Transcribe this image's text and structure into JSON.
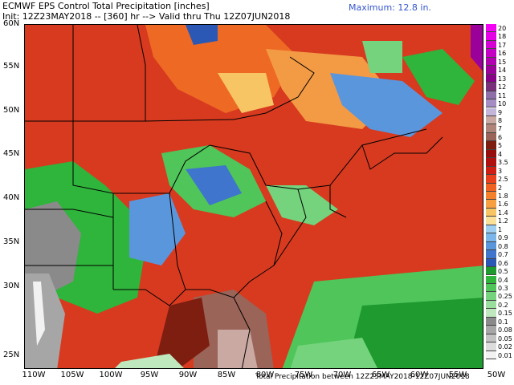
{
  "header": {
    "title": "ECMWF EPS Control Total Precipitation [inches]",
    "init_line": "Init: 12Z23MAY2018 -- [360] hr --> Valid thru Thu 12Z07JUN2018",
    "maximum": "Maximum: 12.8 in."
  },
  "footer": "Total Precipitation between 12Z23MAY2018-12Z07JUN2018",
  "lat_labels": [
    "60N",
    "55N",
    "50N",
    "45N",
    "40N",
    "35N",
    "30N",
    "25N"
  ],
  "lon_labels": [
    "110W",
    "105W",
    "100W",
    "95W",
    "90W",
    "85W",
    "80W",
    "75W",
    "70W",
    "65W",
    "60W",
    "55W",
    "50W"
  ],
  "legend": {
    "labels": [
      "20",
      "18",
      "17",
      "16",
      "15",
      "14",
      "13",
      "12",
      "11",
      "10",
      "9",
      "8",
      "7",
      "6",
      "5",
      "4",
      "3.5",
      "3",
      "2.5",
      "2",
      "1.8",
      "1.6",
      "1.4",
      "1.2",
      "1",
      "0.9",
      "0.8",
      "0.7",
      "0.6",
      "0.5",
      "0.4",
      "0.3",
      "0.25",
      "0.2",
      "0.15",
      "0.1",
      "0.08",
      "0.05",
      "0.02",
      "0.01"
    ],
    "colors": [
      "#f400f4",
      "#e600e6",
      "#d400d4",
      "#c400c4",
      "#b000b0",
      "#9a009a",
      "#880088",
      "#7a2f7a",
      "#8e6fa8",
      "#a58cc3",
      "#c4b6d9",
      "#c9a9a2",
      "#b08579",
      "#9a6458",
      "#7e1e10",
      "#960e0e",
      "#b01010",
      "#cf1e14",
      "#e8401c",
      "#f06222",
      "#f4802c",
      "#f7a041",
      "#f8c564",
      "#fbe09a",
      "#9ecff0",
      "#7ab6ea",
      "#5a96dc",
      "#3f75cc",
      "#2c58b5",
      "#1e9a2e",
      "#2fb43c",
      "#4fc55a",
      "#74d37c",
      "#9ade9d",
      "#bfe8be",
      "#8a8a8a",
      "#a6a6a6",
      "#c2c2c2",
      "#dcdcdc",
      "#f2f2f2"
    ]
  }
}
